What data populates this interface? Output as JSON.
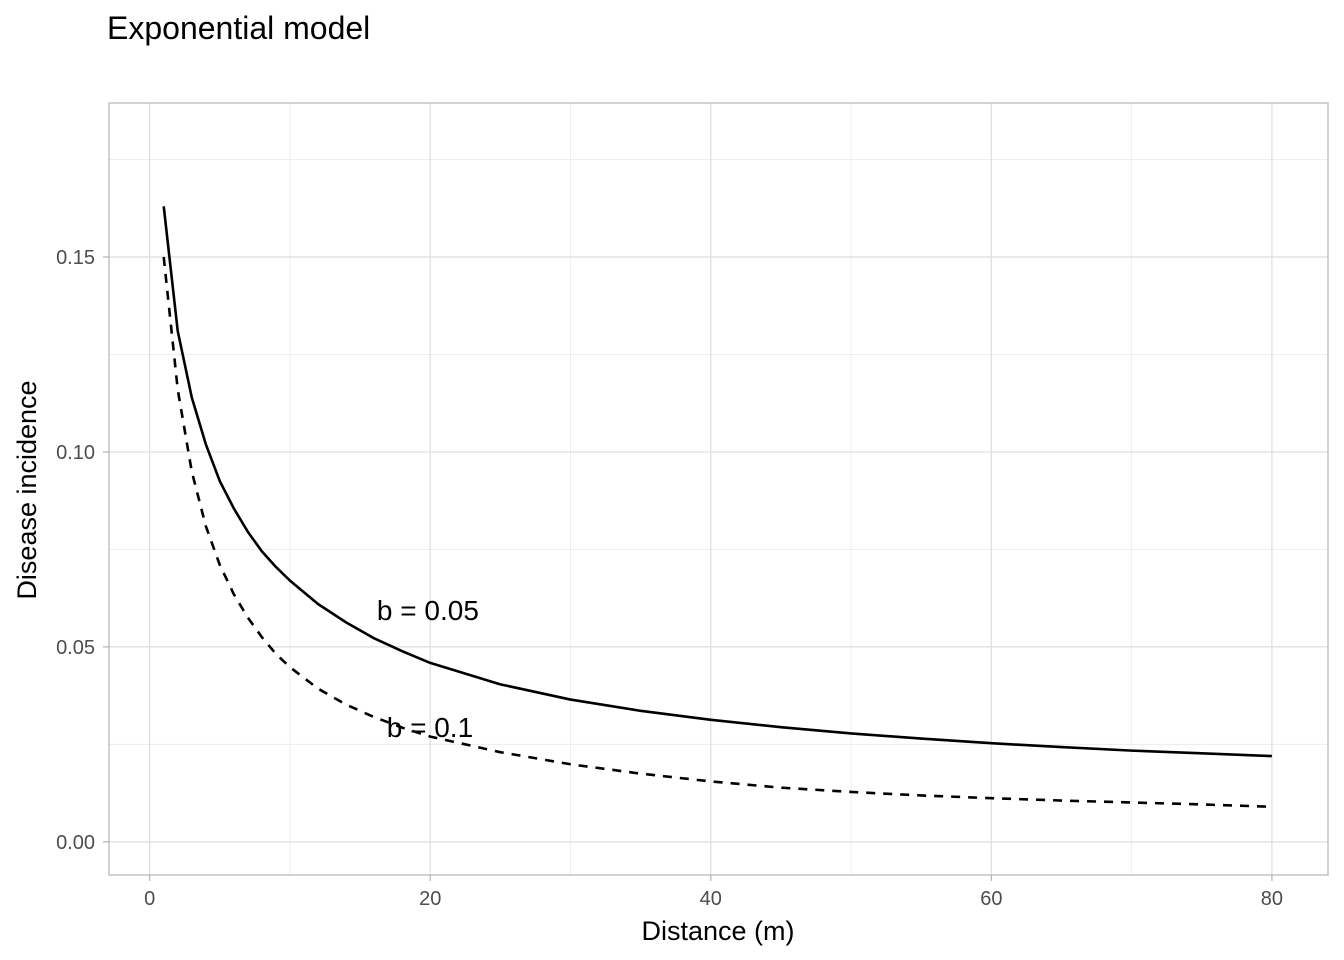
{
  "chart_data": {
    "type": "line",
    "title": "Exponential model",
    "xlabel": "Distance (m)",
    "ylabel": "Disease incidence",
    "xlim": [
      -2.9,
      84
    ],
    "ylim": [
      -0.0085,
      0.1895
    ],
    "x_ticks": [
      0,
      20,
      40,
      60,
      80
    ],
    "x_tick_labels": [
      "0",
      "20",
      "40",
      "60",
      "80"
    ],
    "y_ticks": [
      0.0,
      0.05,
      0.1,
      0.15
    ],
    "y_tick_labels": [
      "0.00",
      "0.05",
      "0.10",
      "0.15"
    ],
    "x_minor": [
      10,
      30,
      50,
      70
    ],
    "y_minor": [
      0.025,
      0.075,
      0.125,
      0.175
    ],
    "grid": true,
    "legend": "none",
    "series": [
      {
        "style": "solid",
        "color": "#000000",
        "x": [
          1,
          2,
          3,
          4,
          5,
          6,
          7,
          8,
          9,
          10,
          12,
          14,
          16,
          18,
          20,
          25,
          30,
          35,
          40,
          45,
          50,
          55,
          60,
          65,
          70,
          75,
          80
        ],
        "y": [
          0.163,
          0.131,
          0.114,
          0.102,
          0.0925,
          0.0855,
          0.0795,
          0.0745,
          0.0705,
          0.067,
          0.061,
          0.0563,
          0.0522,
          0.0489,
          0.0459,
          0.0404,
          0.0365,
          0.0336,
          0.0313,
          0.0294,
          0.0278,
          0.0265,
          0.0253,
          0.0243,
          0.0234,
          0.0227,
          0.022
        ]
      },
      {
        "style": "dashed",
        "color": "#000000",
        "x": [
          1,
          2,
          3,
          4,
          5,
          6,
          7,
          8,
          9,
          10,
          12,
          14,
          16,
          18,
          20,
          25,
          30,
          35,
          40,
          45,
          50,
          55,
          60,
          65,
          70,
          75,
          80
        ],
        "y": [
          0.15,
          0.116,
          0.095,
          0.081,
          0.071,
          0.0635,
          0.0575,
          0.0525,
          0.0482,
          0.0448,
          0.0393,
          0.0352,
          0.032,
          0.0293,
          0.027,
          0.023,
          0.0199,
          0.0175,
          0.0155,
          0.0139,
          0.0128,
          0.0119,
          0.0112,
          0.0106,
          0.0101,
          0.0096,
          0.009
        ]
      }
    ],
    "annotations": [
      {
        "text": "b = 0.05",
        "x": 16.2,
        "y": 0.0595
      },
      {
        "text": "b = 0.1",
        "x": 16.9,
        "y": 0.0295
      }
    ]
  }
}
